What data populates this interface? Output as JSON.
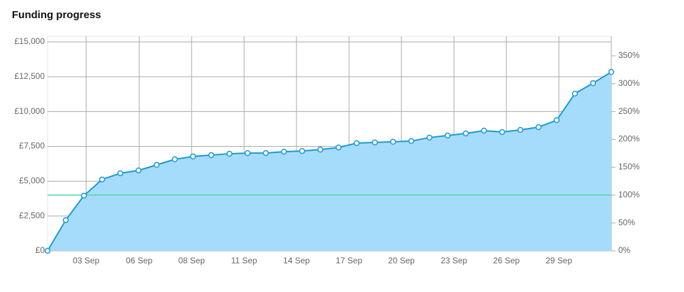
{
  "chart_data": {
    "type": "area",
    "title": "Funding progress",
    "x": [
      0,
      1,
      2,
      3,
      4,
      5,
      6,
      7,
      8,
      9,
      10,
      11,
      12,
      13,
      14,
      15,
      16,
      17,
      18,
      19,
      20,
      21,
      22,
      23,
      24,
      25,
      26,
      27,
      28,
      29,
      30,
      31
    ],
    "xlim": [
      0,
      31
    ],
    "xticks": [
      {
        "value": 2.12,
        "label": "03 Sep"
      },
      {
        "value": 5.04,
        "label": "06 Sep"
      },
      {
        "value": 7.92,
        "label": "08 Sep"
      },
      {
        "value": 10.81,
        "label": "11 Sep"
      },
      {
        "value": 13.69,
        "label": "14 Sep"
      },
      {
        "value": 16.58,
        "label": "17 Sep"
      },
      {
        "value": 19.46,
        "label": "20 Sep"
      },
      {
        "value": 22.35,
        "label": "23 Sep"
      },
      {
        "value": 25.23,
        "label": "26 Sep"
      },
      {
        "value": 28.12,
        "label": "29 Sep"
      }
    ],
    "series": [
      {
        "color": "#1a9ad6",
        "fill": "#a6dcfb",
        "values": [
          0,
          2200,
          3960,
          5120,
          5570,
          5770,
          6170,
          6570,
          6770,
          6870,
          6970,
          7020,
          7020,
          7120,
          7170,
          7270,
          7420,
          7730,
          7780,
          7830,
          7880,
          8130,
          8280,
          8430,
          8630,
          8530,
          8680,
          8880,
          9380,
          11290,
          12040,
          12840
        ]
      }
    ],
    "ylim": [
      0,
      15000
    ],
    "yticks": [
      {
        "value": 0,
        "label": "£0"
      },
      {
        "value": 2500,
        "label": "£2,500"
      },
      {
        "value": 5000,
        "label": "£5,000"
      },
      {
        "value": 7500,
        "label": "£7,500"
      },
      {
        "value": 10000,
        "label": "£10,000"
      },
      {
        "value": 12500,
        "label": "£12,500"
      },
      {
        "value": 15000,
        "label": "£15,000"
      }
    ],
    "y2lim": [
      0,
      375
    ],
    "y2ticks": [
      {
        "value": 0,
        "label": "0%"
      },
      {
        "value": 50,
        "label": "50%"
      },
      {
        "value": 100,
        "label": "100%"
      },
      {
        "value": 150,
        "label": "150%"
      },
      {
        "value": 200,
        "label": "200%"
      },
      {
        "value": 250,
        "label": "250%"
      },
      {
        "value": 300,
        "label": "300%"
      },
      {
        "value": 350,
        "label": "350%"
      }
    ],
    "target": 4000,
    "target_color": "#4fd8a0",
    "grid": true
  }
}
